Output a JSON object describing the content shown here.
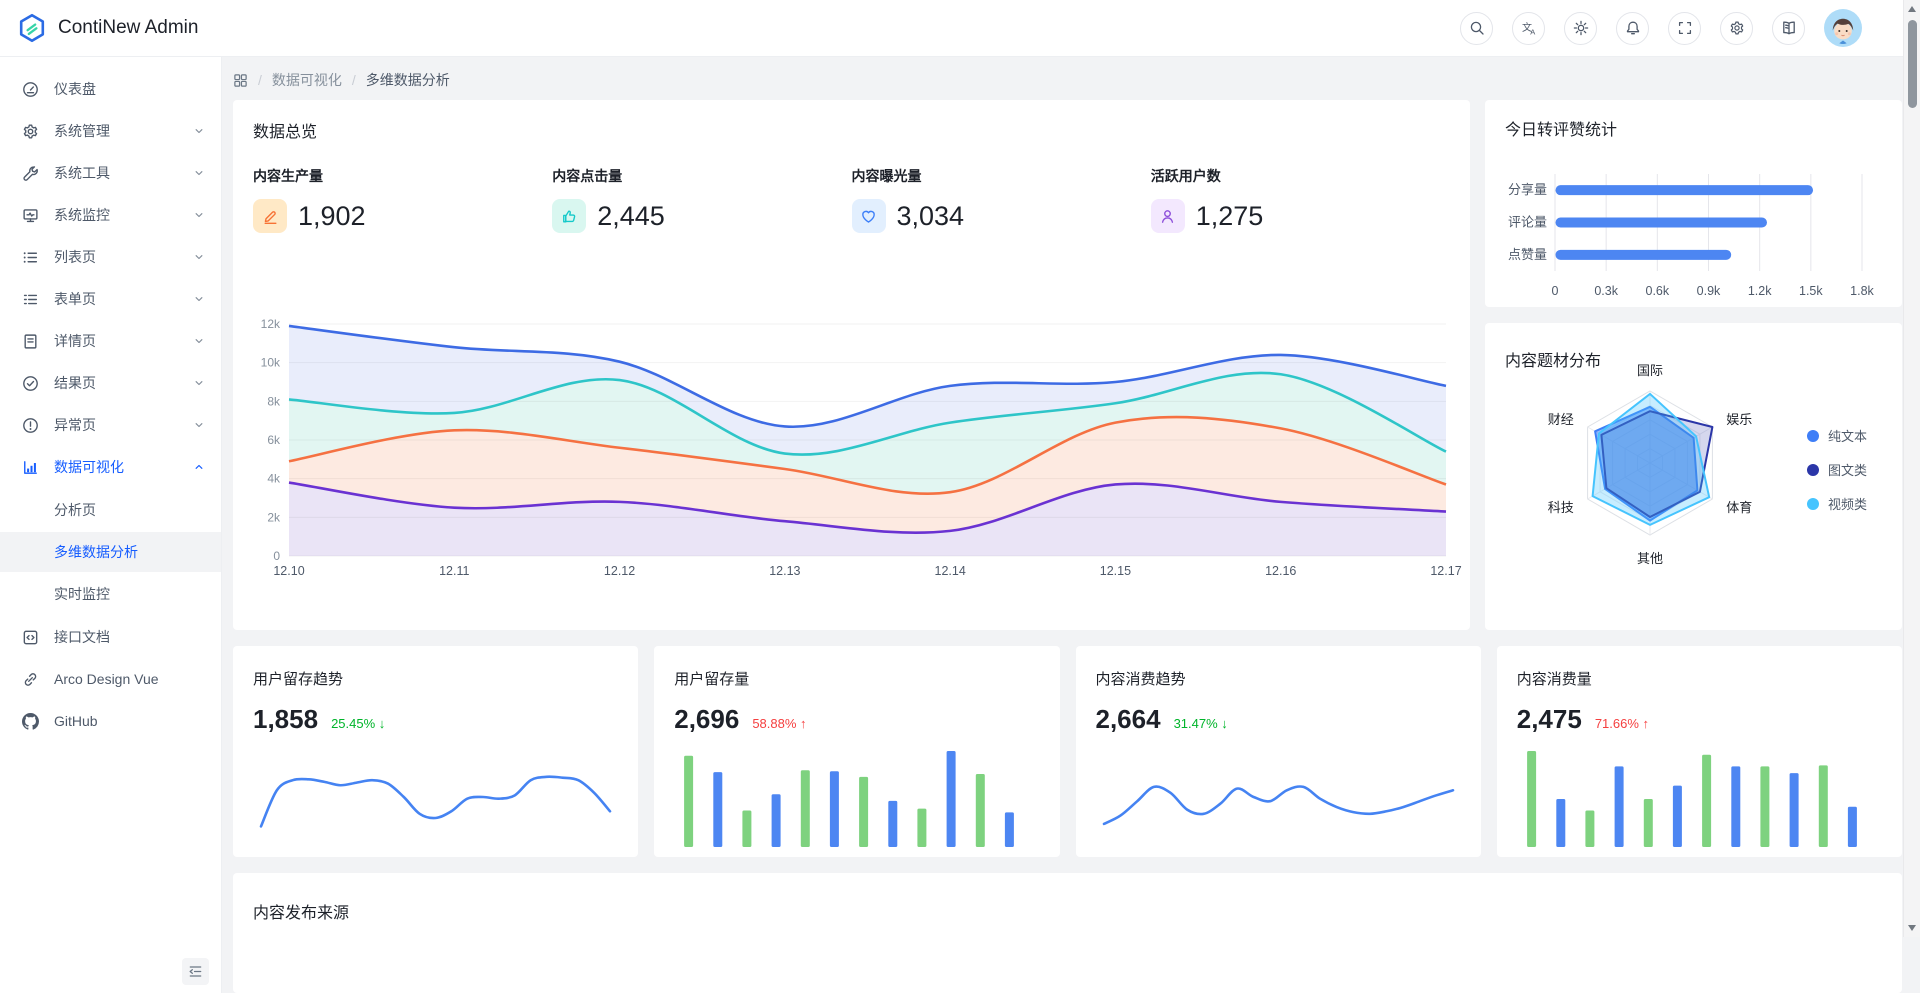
{
  "app": {
    "title": "ContiNew Admin"
  },
  "colors": {
    "primary": "#165DFF",
    "green": "#00B42A",
    "red": "#F53F3F"
  },
  "header": {
    "icons": [
      "search",
      "language",
      "theme",
      "notification",
      "fullscreen",
      "settings",
      "manual",
      "avatar"
    ]
  },
  "sidebar": {
    "items": [
      {
        "name": "dashboard",
        "label": "仪表盘",
        "icon": "dashboard"
      },
      {
        "name": "system-admin",
        "label": "系统管理",
        "icon": "settings",
        "chevron": "down"
      },
      {
        "name": "system-tools",
        "label": "系统工具",
        "icon": "tool",
        "chevron": "down"
      },
      {
        "name": "system-monitor",
        "label": "系统监控",
        "icon": "monitor",
        "chevron": "down"
      },
      {
        "name": "list-page",
        "label": "列表页",
        "icon": "list",
        "chevron": "down"
      },
      {
        "name": "form-page",
        "label": "表单页",
        "icon": "form",
        "chevron": "down"
      },
      {
        "name": "detail-page",
        "label": "详情页",
        "icon": "detail",
        "chevron": "down"
      },
      {
        "name": "result-page",
        "label": "结果页",
        "icon": "result",
        "chevron": "down"
      },
      {
        "name": "exception-page",
        "label": "异常页",
        "icon": "exception",
        "chevron": "down"
      },
      {
        "name": "data-visualization",
        "label": "数据可视化",
        "icon": "chart",
        "chevron": "up",
        "active": true,
        "children": [
          {
            "name": "analysis-page",
            "label": "分析页"
          },
          {
            "name": "multi-dimension-analysis",
            "label": "多维数据分析",
            "active": true
          },
          {
            "name": "realtime-monitor",
            "label": "实时监控"
          }
        ]
      },
      {
        "name": "api-docs",
        "label": "接口文档",
        "icon": "api"
      },
      {
        "name": "arco-design-vue",
        "label": "Arco Design Vue",
        "icon": "link"
      },
      {
        "name": "github",
        "label": "GitHub",
        "icon": "github"
      }
    ]
  },
  "breadcrumb": {
    "crumbs": [
      "数据可视化",
      "多维数据分析"
    ]
  },
  "overview": {
    "title": "数据总览",
    "stats": [
      {
        "label": "内容生产量",
        "value": "1,902",
        "icon": "pen-icon",
        "color": "#F77234",
        "bg": "#FFE9C6"
      },
      {
        "label": "内容点击量",
        "value": "2,445",
        "icon": "thumb-up-icon",
        "color": "#14C9C9",
        "bg": "#D9F7F0"
      },
      {
        "label": "内容曝光量",
        "value": "3,034",
        "icon": "heart-icon",
        "color": "#3D7FF8",
        "bg": "#E2EFFE"
      },
      {
        "label": "活跃用户数",
        "value": "1,275",
        "icon": "user-icon",
        "color": "#8D4EDA",
        "bg": "#F3E8FE"
      }
    ]
  },
  "cards": {
    "today_title": "今日转评赞统计",
    "topic_title": "内容题材分布",
    "publish_title": "内容发布来源",
    "mini": [
      {
        "title": "用户留存趋势",
        "value": "1,858",
        "change": "25.45%",
        "arrow": "↓",
        "change_color": "#00B42A"
      },
      {
        "title": "用户留存量",
        "value": "2,696",
        "change": "58.88%",
        "arrow": "↑",
        "change_color": "#F53F3F"
      },
      {
        "title": "内容消费趋势",
        "value": "2,664",
        "change": "31.47%",
        "arrow": "↓",
        "change_color": "#00B42A"
      },
      {
        "title": "内容消费量",
        "value": "2,475",
        "change": "71.66%",
        "arrow": "↑",
        "change_color": "#F53F3F"
      }
    ]
  },
  "chart_data": [
    {
      "id": "overview",
      "type": "area",
      "x": [
        "12.10",
        "12.11",
        "12.12",
        "12.13",
        "12.14",
        "12.15",
        "12.16",
        "12.17"
      ],
      "ylim": [
        0,
        12000
      ],
      "yticks": [
        "0",
        "2k",
        "4k",
        "6k",
        "8k",
        "10k",
        "12k"
      ],
      "grid": true,
      "legend_position": "none",
      "series": [
        {
          "name": "series-blue",
          "color": "#3D6BE4",
          "fill": "#E9EDFB",
          "values": [
            11900,
            10800,
            10050,
            6700,
            8800,
            9000,
            10400,
            8800
          ]
        },
        {
          "name": "series-teal",
          "color": "#2EC5C8",
          "fill": "#E2F6F2",
          "values": [
            8100,
            7400,
            9100,
            5300,
            6900,
            7900,
            9400,
            5400
          ]
        },
        {
          "name": "series-orange",
          "color": "#F57142",
          "fill": "#FDEAE1",
          "values": [
            4900,
            6500,
            5600,
            4500,
            3300,
            6900,
            6600,
            3700
          ]
        },
        {
          "name": "series-purple",
          "color": "#6A32D2",
          "fill": "#EAE4F6",
          "values": [
            3800,
            2500,
            2800,
            1800,
            1300,
            3700,
            2800,
            2300
          ]
        }
      ]
    },
    {
      "id": "today",
      "type": "bar",
      "title": "今日转评赞统计",
      "categories": [
        "分享量",
        "评论量",
        "点赞量"
      ],
      "values": [
        1510,
        1240,
        1030
      ],
      "xlim": [
        0,
        1800
      ],
      "xticks": [
        "0",
        "0.3k",
        "0.6k",
        "0.9k",
        "1.2k",
        "1.5k",
        "1.8k"
      ],
      "bar_color": "#4D86F2",
      "orientation": "horizontal",
      "grid": true
    },
    {
      "id": "radar",
      "type": "radar",
      "title": "内容题材分布",
      "axes": [
        "国际",
        "娱乐",
        "体育",
        "其他",
        "科技",
        "财经"
      ],
      "rmax": 100,
      "legend_position": "right",
      "series": [
        {
          "name": "纯文本",
          "color": "#3E7EF7",
          "opacity": 0.55,
          "values": [
            78,
            70,
            76,
            80,
            72,
            88
          ]
        },
        {
          "name": "图文类",
          "color": "#2B36A8",
          "opacity": 0.2,
          "values": [
            72,
            100,
            80,
            75,
            70,
            78
          ]
        },
        {
          "name": "视频类",
          "color": "#46C4FE",
          "opacity": 0.3,
          "values": [
            96,
            74,
            95,
            86,
            92,
            82
          ]
        }
      ]
    },
    {
      "id": "retention_trend",
      "type": "line",
      "color": "#4583F2",
      "values": [
        15,
        58,
        70,
        71,
        68,
        64,
        67,
        70,
        66,
        50,
        30,
        25,
        33,
        48,
        50,
        48,
        52,
        70,
        74,
        73,
        70,
        55,
        33
      ]
    },
    {
      "id": "retention_bars",
      "type": "bar",
      "colors": [
        "#7ED27F",
        "#4D86F2"
      ],
      "values": [
        95,
        78,
        38,
        55,
        80,
        79,
        73,
        48,
        40,
        100,
        76,
        36
      ]
    },
    {
      "id": "consumption_trend",
      "type": "line",
      "color": "#4583F2",
      "values": [
        18,
        28,
        45,
        62,
        55,
        35,
        30,
        42,
        60,
        50,
        45,
        58,
        62,
        48,
        38,
        32,
        30,
        33,
        38,
        45,
        52,
        58
      ]
    },
    {
      "id": "consumption_bars",
      "type": "bar",
      "colors": [
        "#7ED27F",
        "#4D86F2"
      ],
      "values": [
        100,
        50,
        38,
        84,
        50,
        64,
        96,
        84,
        84,
        77,
        85,
        42
      ]
    }
  ]
}
